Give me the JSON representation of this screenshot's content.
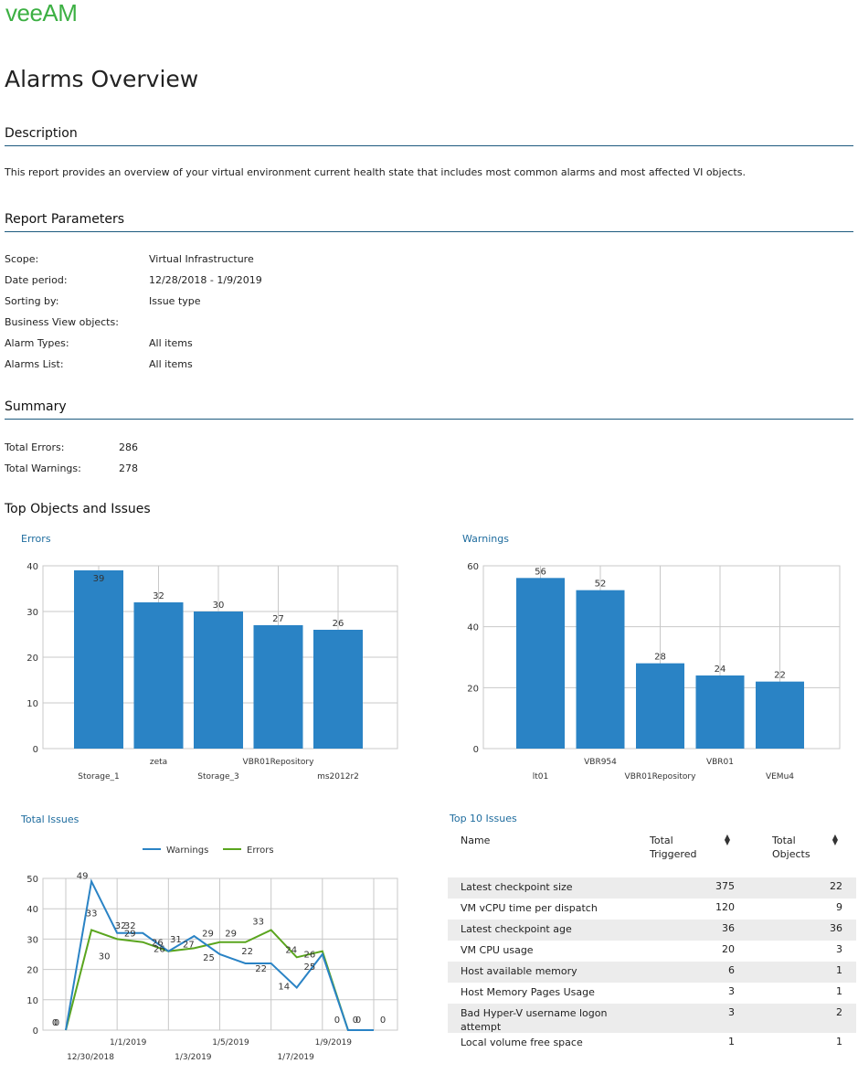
{
  "brand": {
    "logo_text": "veeAM",
    "color": "#3cb043"
  },
  "page_title": "Alarms Overview",
  "description": {
    "heading": "Description",
    "text": "This report provides an overview of your virtual environment current health state that includes most common alarms and most affected VI objects."
  },
  "report_parameters": {
    "heading": "Report Parameters",
    "rows": [
      {
        "label": "Scope:",
        "value": "Virtual Infrastructure"
      },
      {
        "label": "Date period:",
        "value": "12/28/2018 - 1/9/2019"
      },
      {
        "label": "Sorting by:",
        "value": "Issue type"
      },
      {
        "label": "Business View objects:",
        "value": ""
      },
      {
        "label": "Alarm Types:",
        "value": "All items"
      },
      {
        "label": "Alarms List:",
        "value": "All items"
      }
    ]
  },
  "summary": {
    "heading": "Summary",
    "rows": [
      {
        "label": "Total Errors:",
        "value": "286"
      },
      {
        "label": "Total Warnings:",
        "value": "278"
      }
    ]
  },
  "top_objects_heading": "Top Objects and Issues",
  "chart_data": [
    {
      "type": "bar",
      "title": "Errors",
      "categories": [
        "Storage_1",
        "zeta",
        "Storage_3",
        "VBR01Repository",
        "ms2012r2"
      ],
      "values": [
        39,
        32,
        30,
        27,
        26
      ],
      "ylim": [
        0,
        40
      ],
      "yticks": [
        0,
        10,
        20,
        30,
        40
      ],
      "color": "#2a83c5",
      "grid": true
    },
    {
      "type": "bar",
      "title": "Warnings",
      "categories": [
        "lt01",
        "VBR954",
        "VBR01Repository",
        "VBR01",
        "VEMu4"
      ],
      "values": [
        56,
        52,
        28,
        24,
        22
      ],
      "ylim": [
        0,
        60
      ],
      "yticks": [
        0,
        20,
        40,
        60
      ],
      "color": "#2a83c5",
      "grid": true
    },
    {
      "type": "line",
      "title": "Total Issues",
      "x": [
        "12/29/2018",
        "12/30/2018",
        "12/31/2018",
        "1/1/2019",
        "1/2/2019",
        "1/3/2019",
        "1/4/2019",
        "1/5/2019",
        "1/6/2019",
        "1/7/2019",
        "1/8/2019",
        "1/9/2019",
        "1/10/2019"
      ],
      "xticks_top": [
        "1/1/2019",
        "1/5/2019",
        "1/9/2019"
      ],
      "xticks_bottom": [
        "12/30/2018",
        "1/3/2019",
        "1/7/2019"
      ],
      "ylim": [
        0,
        50
      ],
      "yticks": [
        0,
        10,
        20,
        30,
        40,
        50
      ],
      "legend_position": "top",
      "grid": true,
      "series": [
        {
          "name": "Warnings",
          "color": "#2a83c5",
          "values": [
            0,
            49,
            32,
            32,
            26,
            31,
            25,
            22,
            22,
            14,
            25,
            0,
            0
          ]
        },
        {
          "name": "Errors",
          "color": "#5aa51e",
          "values": [
            0,
            33,
            30,
            29,
            26,
            27,
            29,
            29,
            33,
            24,
            26,
            0,
            0
          ]
        }
      ]
    }
  ],
  "top10": {
    "title": "Top 10 Issues",
    "columns": {
      "name": "Name",
      "triggered": "Total Triggered",
      "objects": "Total Objects"
    },
    "rows": [
      {
        "name": "Latest checkpoint size",
        "triggered": "375",
        "objects": "22"
      },
      {
        "name": "VM vCPU time per dispatch",
        "triggered": "120",
        "objects": "9"
      },
      {
        "name": "Latest checkpoint age",
        "triggered": "36",
        "objects": "36"
      },
      {
        "name": "VM CPU usage",
        "triggered": "20",
        "objects": "3"
      },
      {
        "name": "Host available memory",
        "triggered": "6",
        "objects": "1"
      },
      {
        "name": "Host Memory Pages Usage",
        "triggered": "3",
        "objects": "1"
      },
      {
        "name": "Bad Hyper-V username logon attempt",
        "triggered": "3",
        "objects": "2"
      },
      {
        "name": "Local volume free space",
        "triggered": "1",
        "objects": "1"
      }
    ]
  }
}
